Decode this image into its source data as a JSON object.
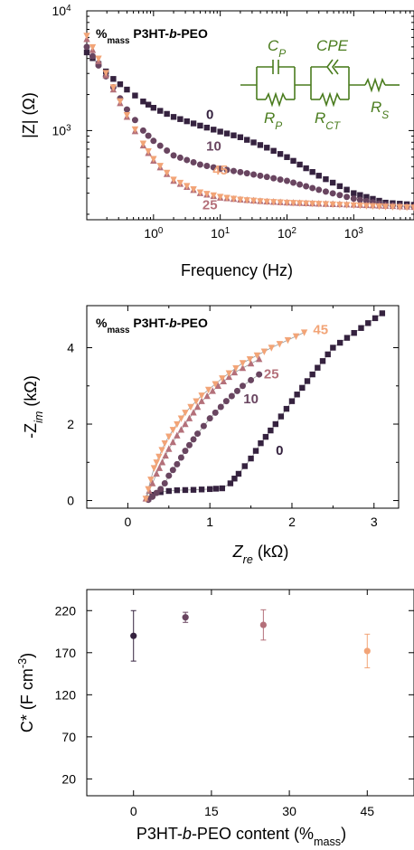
{
  "colors": {
    "s0": "#35223f",
    "s10": "#694560",
    "s25": "#b4707a",
    "s45": "#f2a477",
    "circuit": "#4a7c1e",
    "fit": "#999999"
  },
  "chart_data": [
    {
      "type": "scatter",
      "panel": "a",
      "log_x": true,
      "log_y": true,
      "xlabel": "Frequency (Hz)",
      "ylabel": "|Z| (Ω)",
      "xlim": [
        0.1,
        8000
      ],
      "ylim": [
        180,
        10000
      ],
      "legend_title": "%mass P3HT-b-PEO",
      "x_ticks": [
        "10⁰",
        "10¹",
        "10²",
        "10³"
      ],
      "y_ticks": [
        "10³",
        "10⁴"
      ],
      "circuit_labels": {
        "cp": "CP",
        "rp": "RP",
        "cpe": "CPE",
        "rct": "RCT",
        "rs": "RS"
      },
      "series": [
        {
          "name": "0",
          "color_key": "s0",
          "label_x": 7,
          "label_y": 1250,
          "x": [
            0.1,
            0.15,
            0.25,
            0.4,
            0.7,
            1,
            2,
            5,
            10,
            20,
            50,
            100,
            300,
            1000,
            3000,
            8000
          ],
          "y": [
            4500,
            3600,
            2700,
            2200,
            1750,
            1550,
            1300,
            1100,
            980,
            880,
            720,
            600,
            420,
            300,
            250,
            240
          ]
        },
        {
          "name": "10",
          "color_key": "s10",
          "label_x": 8,
          "label_y": 680,
          "x": [
            0.1,
            0.15,
            0.25,
            0.4,
            0.7,
            1,
            2,
            5,
            10,
            20,
            50,
            100,
            300,
            1000,
            3000,
            8000
          ],
          "y": [
            5000,
            3500,
            2300,
            1500,
            1000,
            820,
            620,
            520,
            480,
            450,
            410,
            380,
            320,
            270,
            240,
            230
          ]
        },
        {
          "name": "25",
          "color_key": "s25",
          "label_x": 7,
          "label_y": 220,
          "x": [
            0.1,
            0.15,
            0.25,
            0.4,
            0.7,
            1,
            2,
            5,
            10,
            20,
            50,
            100,
            300,
            1000,
            3000,
            8000
          ],
          "y": [
            5800,
            3800,
            2200,
            1300,
            750,
            560,
            380,
            300,
            275,
            265,
            255,
            250,
            245,
            240,
            235,
            230
          ]
        },
        {
          "name": "45",
          "color_key": "s45",
          "label_x": 10,
          "label_y": 430,
          "x": [
            0.1,
            0.15,
            0.25,
            0.4,
            0.7,
            1,
            2,
            5,
            10,
            20,
            50,
            100,
            300,
            1000,
            3000,
            8000
          ],
          "y": [
            6200,
            4000,
            2300,
            1350,
            780,
            580,
            390,
            305,
            280,
            265,
            255,
            250,
            245,
            238,
            232,
            228
          ]
        }
      ]
    },
    {
      "type": "scatter",
      "panel": "b",
      "xlabel": "Zre (kΩ)",
      "ylabel": "-Zim (kΩ)",
      "xlim": [
        -0.5,
        3.3
      ],
      "ylim": [
        -0.2,
        5.1
      ],
      "legend_title": "%mass P3HT-b-PEO",
      "x_ticks": [
        0,
        1,
        2,
        3
      ],
      "y_ticks": [
        0,
        2,
        4
      ],
      "series": [
        {
          "name": "0",
          "color_key": "s0",
          "label_x": 1.85,
          "label_y": 1.2,
          "x": [
            0.25,
            0.3,
            0.4,
            0.5,
            0.6,
            0.8,
            1.0,
            1.15,
            1.25,
            1.35,
            1.5,
            1.62,
            1.8,
            2.0,
            2.5,
            3.1
          ],
          "y": [
            0.05,
            0.15,
            0.22,
            0.25,
            0.27,
            0.28,
            0.3,
            0.32,
            0.45,
            0.7,
            1.1,
            1.5,
            2.0,
            2.6,
            4.0,
            4.9
          ]
        },
        {
          "name": "10",
          "color_key": "s10",
          "label_x": 1.5,
          "label_y": 2.55,
          "x": [
            0.25,
            0.3,
            0.35,
            0.4,
            0.45,
            0.5,
            0.6,
            0.7,
            0.85,
            1.0,
            1.2,
            1.4,
            1.6
          ],
          "y": [
            0.02,
            0.1,
            0.2,
            0.3,
            0.45,
            0.65,
            0.95,
            1.3,
            1.75,
            2.15,
            2.6,
            3.0,
            3.3
          ]
        },
        {
          "name": "25",
          "color_key": "s25",
          "label_x": 1.75,
          "label_y": 3.2,
          "x": [
            0.22,
            0.26,
            0.3,
            0.35,
            0.42,
            0.5,
            0.6,
            0.75,
            0.9,
            1.1,
            1.3,
            1.6
          ],
          "y": [
            0.05,
            0.25,
            0.45,
            0.7,
            1.0,
            1.35,
            1.7,
            2.15,
            2.6,
            3.0,
            3.35,
            3.7
          ]
        },
        {
          "name": "45",
          "color_key": "s45",
          "label_x": 2.35,
          "label_y": 4.35,
          "x": [
            0.22,
            0.25,
            0.28,
            0.32,
            0.38,
            0.45,
            0.55,
            0.7,
            0.9,
            1.15,
            1.4,
            1.75,
            2.15
          ],
          "y": [
            0.05,
            0.3,
            0.55,
            0.85,
            1.15,
            1.5,
            1.85,
            2.3,
            2.75,
            3.2,
            3.6,
            4.0,
            4.4
          ]
        }
      ]
    },
    {
      "type": "scatter",
      "panel": "c",
      "xlabel": "P3HT-b-PEO content (%mass)",
      "ylabel": "C* (F cm⁻³)",
      "xlim": [
        -9,
        54
      ],
      "ylim": [
        0,
        245
      ],
      "x_ticks": [
        0,
        15,
        30,
        45
      ],
      "y_ticks": [
        20,
        70,
        120,
        170,
        220
      ],
      "points": [
        {
          "x": 0,
          "y": 190,
          "err": 30,
          "color_key": "s0"
        },
        {
          "x": 10,
          "y": 212,
          "err": 6,
          "color_key": "s10"
        },
        {
          "x": 25,
          "y": 203,
          "err": 18,
          "color_key": "s25"
        },
        {
          "x": 45,
          "y": 172,
          "err": 20,
          "color_key": "s45"
        }
      ]
    }
  ]
}
